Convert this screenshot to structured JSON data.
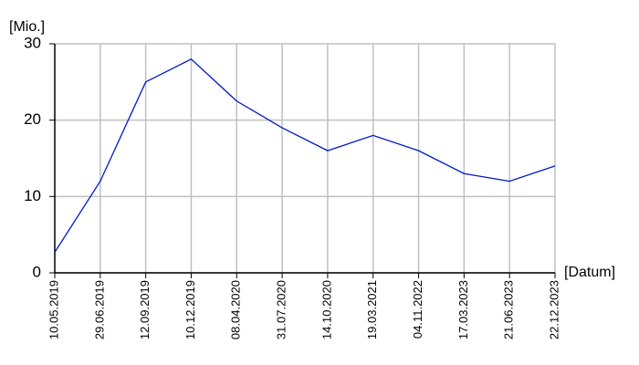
{
  "chart_data": {
    "type": "line",
    "y_label": "[Mio.]",
    "x_label": "[Datum]",
    "categories": [
      "10.05.2019",
      "29.06.2019",
      "12.09.2019",
      "10.12.2019",
      "08.04.2020",
      "31.07.2020",
      "14.10.2020",
      "19.03.2021",
      "04.11.2022",
      "17.03.2023",
      "21.06.2023",
      "22.12.2023"
    ],
    "series": [
      {
        "color": "#0018c8",
        "values": [
          2.7,
          12,
          25,
          28,
          22.5,
          19,
          16,
          18,
          16,
          13,
          12,
          14
        ]
      }
    ],
    "ylim": [
      0,
      30
    ],
    "yticks": [
      0,
      10,
      20,
      30
    ],
    "grid": true
  }
}
